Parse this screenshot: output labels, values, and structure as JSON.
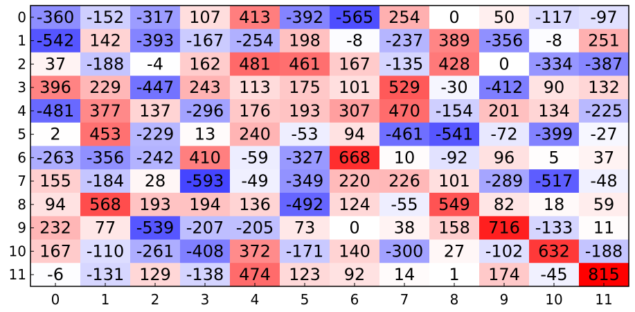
{
  "chart_data": {
    "type": "heatmap",
    "title": "",
    "xlabel": "",
    "ylabel": "",
    "colormap": "bwr",
    "value_range": [
      -815,
      815
    ],
    "colors": {
      "negative": "#0000ff",
      "zero": "#ffffff",
      "positive": "#ff0000",
      "text": "#000000",
      "frame": "#000000"
    },
    "x_ticks": [
      "0",
      "1",
      "2",
      "3",
      "4",
      "5",
      "6",
      "7",
      "8",
      "9",
      "10",
      "11"
    ],
    "y_ticks": [
      "0",
      "1",
      "2",
      "3",
      "4",
      "5",
      "6",
      "7",
      "8",
      "9",
      "10",
      "11"
    ],
    "values": [
      [
        -360,
        -152,
        -317,
        107,
        413,
        -392,
        -565,
        254,
        0,
        50,
        -117,
        -97
      ],
      [
        -542,
        142,
        -393,
        -167,
        -254,
        198,
        -8,
        -237,
        389,
        -356,
        -8,
        251
      ],
      [
        37,
        -188,
        -4,
        162,
        481,
        461,
        167,
        -135,
        428,
        0,
        -334,
        -387
      ],
      [
        396,
        229,
        -447,
        243,
        113,
        175,
        101,
        529,
        -30,
        -412,
        90,
        132
      ],
      [
        -481,
        377,
        137,
        -296,
        176,
        193,
        307,
        470,
        -154,
        201,
        134,
        -225
      ],
      [
        2,
        453,
        -229,
        13,
        240,
        -53,
        94,
        -461,
        -541,
        -72,
        -399,
        -27
      ],
      [
        -263,
        -356,
        -242,
        410,
        -59,
        -327,
        668,
        10,
        -92,
        96,
        5,
        37
      ],
      [
        155,
        -184,
        28,
        -593,
        -49,
        -349,
        220,
        226,
        101,
        -289,
        -517,
        -48
      ],
      [
        94,
        568,
        193,
        194,
        136,
        -492,
        124,
        -55,
        549,
        82,
        18,
        59
      ],
      [
        232,
        77,
        -539,
        -207,
        -205,
        73,
        0,
        38,
        158,
        716,
        -133,
        11
      ],
      [
        167,
        -110,
        -261,
        -408,
        372,
        -171,
        140,
        -300,
        27,
        -102,
        632,
        -188
      ],
      [
        -6,
        -131,
        129,
        -138,
        474,
        123,
        92,
        14,
        1,
        174,
        -45,
        815
      ]
    ]
  }
}
